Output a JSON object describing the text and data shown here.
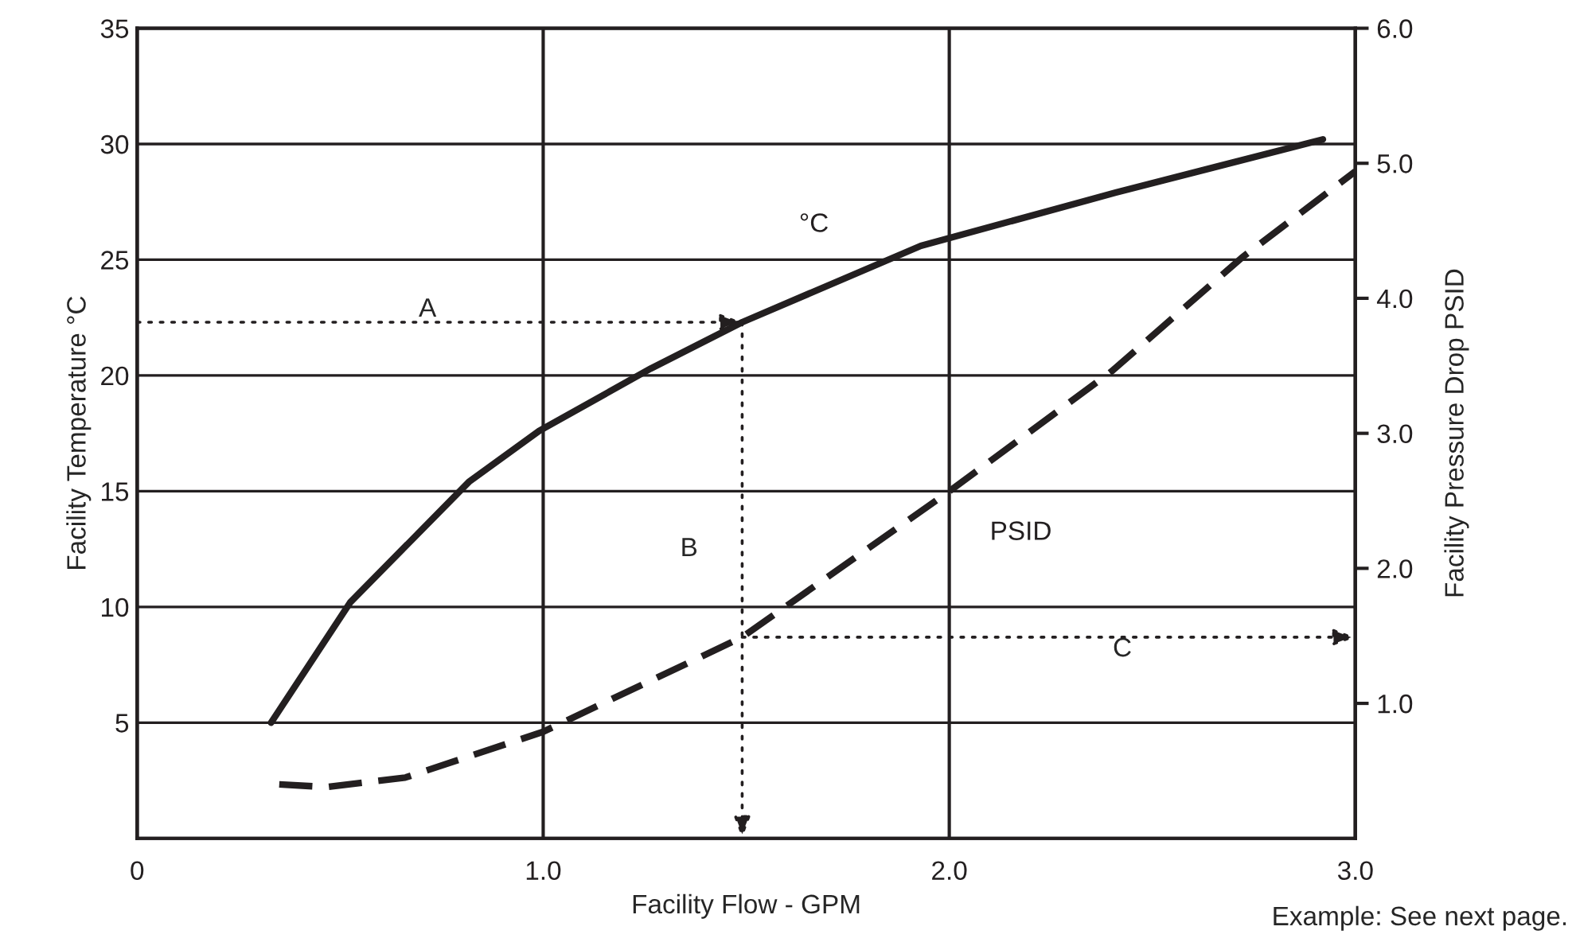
{
  "chart_data": {
    "type": "line",
    "xlabel": "Facility Flow - GPM",
    "ylabel": "Facility Temperature °C",
    "y2label": "Facility Pressure Drop PSID",
    "series": [
      {
        "name": "°C",
        "color": "#231f20",
        "line_style": "solid",
        "x": [
          0.33,
          0.525,
          0.817,
          0.99,
          1.265,
          1.49,
          1.93,
          2.41,
          2.92
        ],
        "values": [
          5.0,
          10.2,
          15.4,
          17.6,
          20.3,
          22.3,
          25.6,
          27.9,
          30.2
        ]
      },
      {
        "name": "PSID",
        "color": "#231f20",
        "line_style": "dashed",
        "axis": "y2",
        "x": [
          0.35,
          0.467,
          0.66,
          1.0,
          1.49,
          2.0,
          2.4,
          2.72,
          3.0
        ],
        "values": [
          0.4,
          0.38,
          0.45,
          0.79,
          1.49,
          2.57,
          3.46,
          4.3,
          4.94
        ]
      }
    ],
    "xlim": [
      0,
      3.0
    ],
    "xticks": [
      0,
      {
        "value": 1,
        "label": "1.0"
      },
      {
        "value": 2,
        "label": "2.0"
      },
      {
        "value": 3,
        "label": "3.0"
      }
    ],
    "ylim": [
      0,
      35
    ],
    "yticks": [
      5,
      10,
      15,
      20,
      25,
      30,
      35
    ],
    "y2lim": [
      0,
      6.0
    ],
    "y2ticks": [
      {
        "value": 1,
        "label": "1.0"
      },
      {
        "value": 2,
        "label": "2.0"
      },
      {
        "value": 3,
        "label": "3.0"
      },
      {
        "value": 4,
        "label": "4.0"
      },
      {
        "value": 5,
        "label": "5.0"
      },
      {
        "value": 6,
        "label": "6.0"
      }
    ],
    "grid": true,
    "marker": "none",
    "annotations": [
      "A",
      "B",
      "C",
      "Example: See next page."
    ]
  }
}
